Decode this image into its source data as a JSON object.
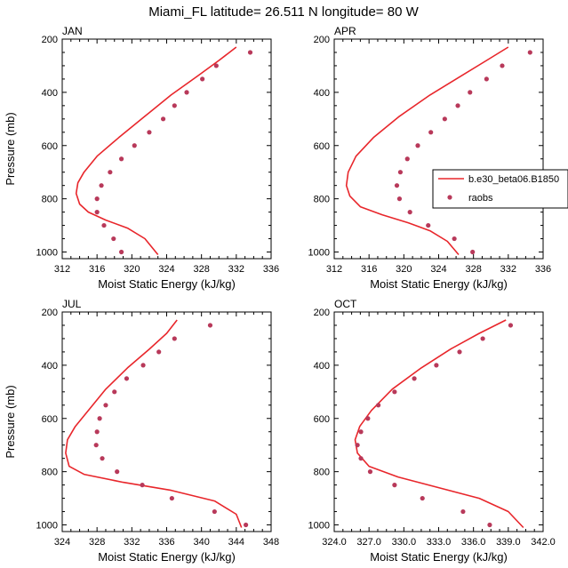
{
  "title": "Miami_FL  latitude= 26.511 N longitude= 80 W",
  "colors": {
    "model_line": "#e8262b",
    "raobs_marker": "#b8395a",
    "axis": "#000000"
  },
  "legend": {
    "placement": "right-middle of APR panel",
    "entries": [
      {
        "label": "b.e30_beta06.B1850",
        "style": "line",
        "color": "#e8262b"
      },
      {
        "label": "raobs",
        "style": "marker",
        "color": "#b8395a"
      }
    ]
  },
  "chart_data": [
    {
      "type": "line",
      "panel": "JAN",
      "title": "JAN",
      "xlabel": "Moist Static Energy (kJ/kg)",
      "ylabel": "Pressure (mb)",
      "xlim": [
        312,
        336
      ],
      "ylim": [
        1025,
        200
      ],
      "xticks": [
        312,
        316,
        320,
        324,
        328,
        332,
        336
      ],
      "xticklabels": [
        "312",
        "316",
        "320",
        "324",
        "328",
        "332",
        "336"
      ],
      "yticks": [
        200,
        400,
        600,
        800,
        1000
      ],
      "yticklabels": [
        "200",
        "400",
        "600",
        "800",
        "1000"
      ],
      "series": [
        {
          "name": "b.e30_beta06.B1850",
          "kind": "line",
          "x": [
            332.0,
            330.0,
            327.5,
            324.5,
            321.5,
            318.5,
            316.0,
            314.5,
            313.8,
            313.6,
            314.0,
            315.0,
            317.0,
            319.5,
            321.5,
            322.5,
            323.0
          ],
          "y": [
            230,
            280,
            340,
            410,
            490,
            570,
            640,
            700,
            740,
            780,
            820,
            850,
            880,
            910,
            950,
            990,
            1010
          ]
        },
        {
          "name": "raobs",
          "kind": "scatter",
          "x": [
            333.6,
            329.7,
            328.1,
            326.3,
            324.9,
            323.6,
            322.0,
            320.3,
            318.8,
            317.5,
            316.5,
            316.0,
            316.0,
            316.8,
            317.9,
            318.8
          ],
          "y": [
            250,
            300,
            350,
            400,
            450,
            500,
            550,
            600,
            650,
            700,
            750,
            800,
            850,
            900,
            950,
            1000
          ]
        }
      ]
    },
    {
      "type": "line",
      "panel": "APR",
      "title": "APR",
      "xlabel": "Moist Static Energy (kJ/kg)",
      "ylabel": "",
      "xlim": [
        312,
        336
      ],
      "ylim": [
        1025,
        200
      ],
      "xticks": [
        312,
        316,
        320,
        324,
        328,
        332,
        336
      ],
      "xticklabels": [
        "312",
        "316",
        "320",
        "324",
        "328",
        "332",
        "336"
      ],
      "yticks": [
        200,
        400,
        600,
        800,
        1000
      ],
      "yticklabels": [
        "200",
        "400",
        "600",
        "800",
        "1000"
      ],
      "series": [
        {
          "name": "b.e30_beta06.B1850",
          "kind": "line",
          "x": [
            332.0,
            329.5,
            326.5,
            323.0,
            319.5,
            316.5,
            314.5,
            313.6,
            313.4,
            313.8,
            315.0,
            317.5,
            320.5,
            323.0,
            325.0,
            326.3
          ],
          "y": [
            230,
            280,
            340,
            410,
            490,
            570,
            640,
            700,
            750,
            790,
            830,
            860,
            890,
            920,
            960,
            1010
          ]
        },
        {
          "name": "raobs",
          "kind": "scatter",
          "x": [
            334.5,
            331.3,
            329.5,
            327.6,
            326.2,
            324.7,
            323.1,
            321.6,
            320.4,
            319.6,
            319.2,
            319.5,
            320.7,
            322.8,
            325.8,
            327.9
          ],
          "y": [
            250,
            300,
            350,
            400,
            450,
            500,
            550,
            600,
            650,
            700,
            750,
            800,
            850,
            900,
            950,
            1000
          ]
        }
      ]
    },
    {
      "type": "line",
      "panel": "JUL",
      "title": "JUL",
      "xlabel": "Moist Static Energy (kJ/kg)",
      "ylabel": "Pressure (mb)",
      "xlim": [
        324,
        348
      ],
      "ylim": [
        1025,
        200
      ],
      "xticks": [
        324,
        328,
        332,
        336,
        340,
        344,
        348
      ],
      "xticklabels": [
        "324",
        "328",
        "332",
        "336",
        "340",
        "344",
        "348"
      ],
      "yticks": [
        200,
        400,
        600,
        800,
        1000
      ],
      "yticklabels": [
        "200",
        "400",
        "600",
        "800",
        "1000"
      ],
      "series": [
        {
          "name": "b.e30_beta06.B1850",
          "kind": "line",
          "x": [
            337.2,
            336.0,
            334.0,
            331.5,
            329.0,
            327.0,
            325.5,
            324.6,
            324.4,
            324.8,
            326.5,
            331.0,
            336.5,
            341.5,
            344.0,
            344.6
          ],
          "y": [
            230,
            280,
            340,
            410,
            490,
            570,
            630,
            680,
            730,
            780,
            810,
            840,
            870,
            910,
            960,
            1010
          ]
        },
        {
          "name": "raobs",
          "kind": "scatter",
          "x": [
            341.0,
            336.9,
            335.1,
            333.3,
            331.4,
            330.0,
            329.0,
            328.3,
            328.0,
            327.9,
            328.6,
            330.3,
            333.2,
            336.6,
            341.5,
            345.1
          ],
          "y": [
            250,
            300,
            350,
            400,
            450,
            500,
            550,
            600,
            650,
            700,
            750,
            800,
            850,
            900,
            950,
            1000
          ]
        }
      ]
    },
    {
      "type": "line",
      "panel": "OCT",
      "title": "OCT",
      "xlabel": "Moist Static Energy (kJ/kg)",
      "ylabel": "",
      "xlim": [
        324.0,
        342.0
      ],
      "ylim": [
        1025,
        200
      ],
      "xticks": [
        324.0,
        327.0,
        330.0,
        333.0,
        336.0,
        339.0,
        342.0
      ],
      "xticklabels": [
        "324.0",
        "327.0",
        "330.0",
        "333.0",
        "336.0",
        "339.0",
        "342.0"
      ],
      "yticks": [
        200,
        400,
        600,
        800,
        1000
      ],
      "yticklabels": [
        "200",
        "400",
        "600",
        "800",
        "1000"
      ],
      "series": [
        {
          "name": "b.e30_beta06.B1850",
          "kind": "line",
          "x": [
            338.8,
            336.5,
            334.0,
            331.5,
            329.0,
            327.2,
            326.2,
            325.8,
            326.0,
            327.0,
            329.5,
            333.0,
            336.5,
            339.0,
            340.3
          ],
          "y": [
            230,
            280,
            340,
            410,
            490,
            570,
            630,
            680,
            730,
            780,
            820,
            860,
            900,
            950,
            1010
          ]
        },
        {
          "name": "raobs",
          "kind": "scatter",
          "x": [
            339.2,
            336.8,
            334.8,
            332.8,
            330.9,
            329.2,
            327.8,
            326.9,
            326.3,
            326.0,
            326.3,
            327.1,
            329.2,
            331.6,
            335.1,
            337.4
          ],
          "y": [
            250,
            300,
            350,
            400,
            450,
            500,
            550,
            600,
            650,
            700,
            750,
            800,
            850,
            900,
            950,
            1000
          ]
        }
      ]
    }
  ]
}
